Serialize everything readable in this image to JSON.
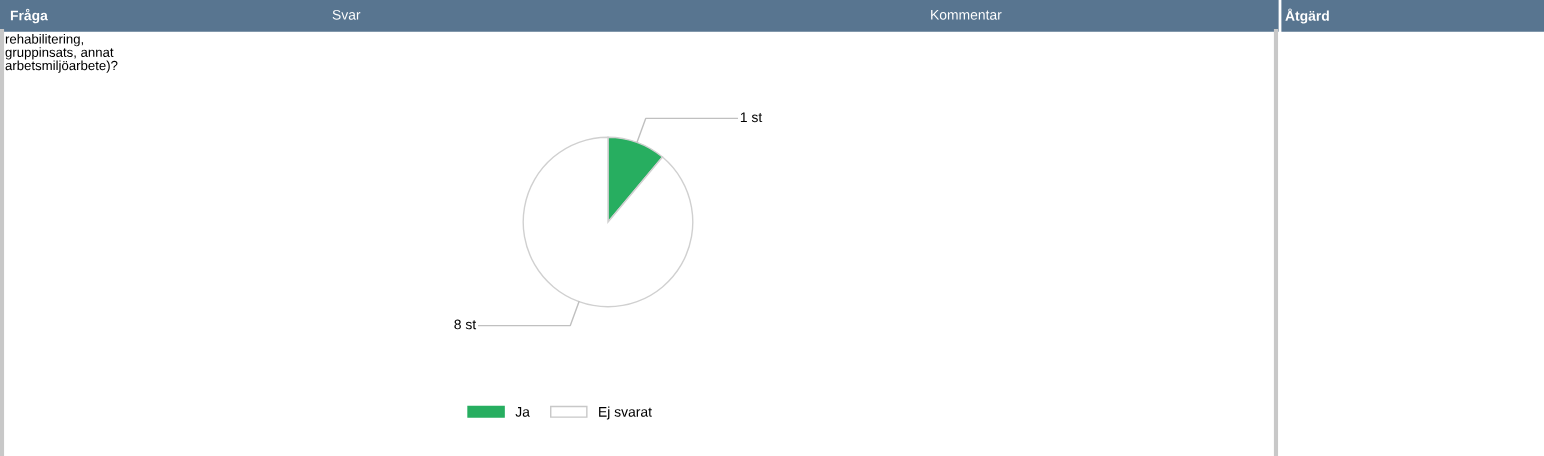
{
  "chart_data": {
    "type": "pie",
    "categories": [
      "Ja",
      "Ej svarat"
    ],
    "values": [
      1,
      8
    ],
    "colors": [
      "#27ae60",
      "#ffffff"
    ],
    "value_labels": [
      "1 st",
      "8 st"
    ],
    "legend": "bottom",
    "annotations": [
      "Fråga",
      "Svar",
      "Kommentar",
      "Åtgärd",
      "rehabilitering,\ngruppinsats, annat\narbetsmiljöarbete)?"
    ]
  }
}
